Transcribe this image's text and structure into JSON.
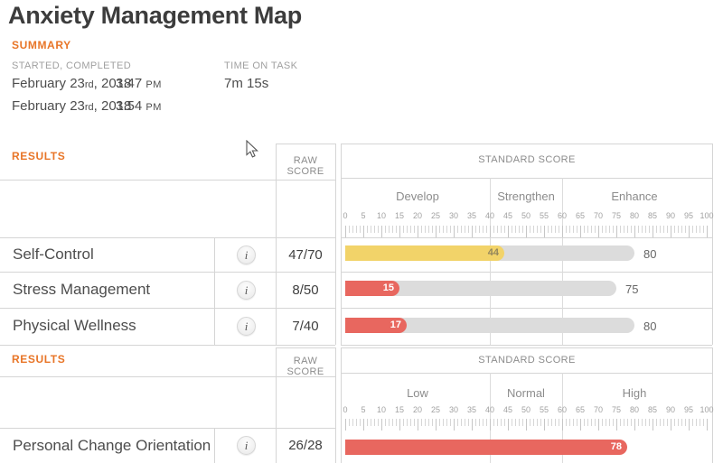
{
  "page": {
    "title": "Anxiety Management Map"
  },
  "summary": {
    "label": "SUMMARY",
    "started_completed_label": "STARTED, COMPLETED",
    "time_on_task_label": "TIME ON TASK",
    "time_on_task_value": "7m 15s",
    "dates": [
      {
        "date": "February 23",
        "suffix": "rd",
        "year": ", 2018",
        "time": "3:47",
        "meridiem": "PM"
      },
      {
        "date": "February 23",
        "suffix": "rd",
        "year": ", 2018",
        "time": "3:54",
        "meridiem": "PM"
      }
    ]
  },
  "table_headers": {
    "results_label": "RESULTS",
    "raw_score_label": "RAW SCORE",
    "standard_score_label": "STANDARD SCORE"
  },
  "colors": {
    "accent_orange": "#e87527",
    "bar_yellow": "#f2d369",
    "bar_red": "#e8675f",
    "bar_track_gray": "#dcdcdc",
    "yellow_value_text": "#93865c",
    "red_value_text": "#ffffff"
  },
  "chart_data": [
    {
      "type": "bar",
      "title": "STANDARD SCORE",
      "axis": {
        "min": 0,
        "max": 100,
        "major_step": 5,
        "minor_step": 1
      },
      "zones": [
        {
          "label": "Develop",
          "from": 0,
          "to": 40
        },
        {
          "label": "Strengthen",
          "from": 40,
          "to": 60
        },
        {
          "label": "Enhance",
          "from": 60,
          "to": 100
        }
      ],
      "rows": [
        {
          "name": "Self-Control",
          "raw_score": "47/70",
          "standard_score": 44,
          "bar_color": "#f2d369",
          "value_text_color": "#93865c",
          "benchmark": 80
        },
        {
          "name": "Stress Management",
          "raw_score": "8/50",
          "standard_score": 15,
          "bar_color": "#e8675f",
          "value_text_color": "#ffffff",
          "benchmark": 75
        },
        {
          "name": "Physical Wellness",
          "raw_score": "7/40",
          "standard_score": 17,
          "bar_color": "#e8675f",
          "value_text_color": "#ffffff",
          "benchmark": 80
        }
      ]
    },
    {
      "type": "bar",
      "title": "STANDARD SCORE",
      "axis": {
        "min": 0,
        "max": 100,
        "major_step": 5,
        "minor_step": 1
      },
      "zones": [
        {
          "label": "Low",
          "from": 0,
          "to": 40
        },
        {
          "label": "Normal",
          "from": 40,
          "to": 60
        },
        {
          "label": "High",
          "from": 60,
          "to": 100
        }
      ],
      "rows": [
        {
          "name": "Personal Change Orientation",
          "raw_score": "26/28",
          "standard_score": 78,
          "bar_color": "#e8675f",
          "value_text_color": "#ffffff",
          "benchmark": null
        }
      ]
    }
  ]
}
